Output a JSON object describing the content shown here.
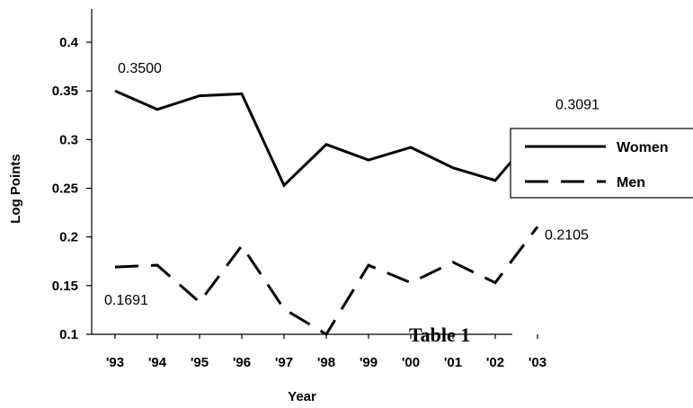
{
  "chart_data": {
    "type": "line",
    "title": "",
    "xlabel": "Year",
    "ylabel": "Log Points",
    "categories": [
      "'93",
      "'94",
      "'95",
      "'96",
      "'97",
      "'98",
      "'99",
      "'00",
      "'01",
      "'02",
      "'03"
    ],
    "y_ticks": [
      "0.1",
      "0.15",
      "0.2",
      "0.25",
      "0.3",
      "0.35",
      "0.4"
    ],
    "ylim": [
      0.1,
      0.4
    ],
    "grid": false,
    "legend_position": "right",
    "series": [
      {
        "name": "Women",
        "style": "solid",
        "values": [
          0.35,
          0.331,
          0.345,
          0.347,
          0.253,
          0.295,
          0.279,
          0.292,
          0.271,
          0.258,
          0.3091
        ]
      },
      {
        "name": "Men",
        "style": "dashed",
        "values": [
          0.1691,
          0.171,
          0.133,
          0.191,
          0.126,
          0.1,
          0.171,
          0.153,
          0.174,
          0.153,
          0.2105
        ]
      }
    ],
    "annotations": [
      {
        "series": 0,
        "index": 0,
        "text": "0.3500"
      },
      {
        "series": 0,
        "index": 10,
        "text": "0.3091"
      },
      {
        "series": 1,
        "index": 0,
        "text": "0.1691"
      },
      {
        "series": 1,
        "index": 10,
        "text": "0.2105"
      }
    ],
    "caption": "Table 1",
    "line_color": "#000000"
  }
}
